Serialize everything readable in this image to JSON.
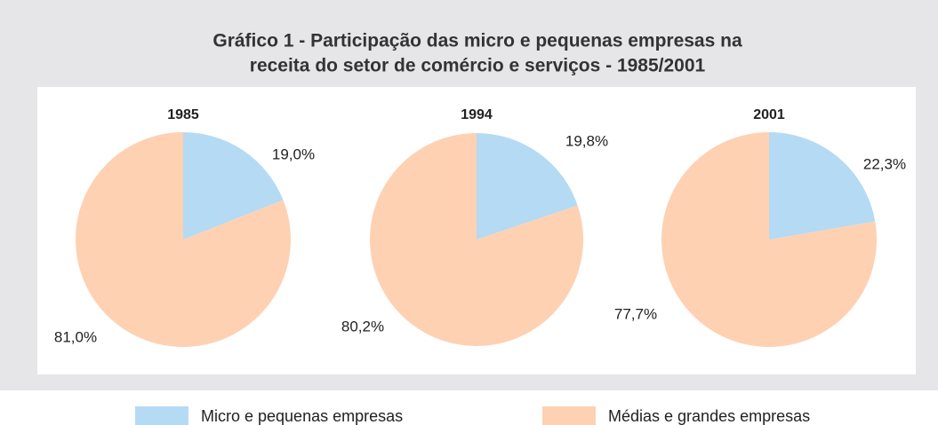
{
  "title": "Gráfico 1 - Participação das micro e pequenas empresas na receita do setor de comércio e serviços - 1985/2001",
  "title_lines": [
    "Gráfico 1 - Participação das micro e pequenas empresas na",
    "receita do setor de comércio e serviços - 1985/2001"
  ],
  "chart_data": [
    {
      "type": "pie",
      "title": "1985",
      "categories": [
        "Micro e pequenas empresas",
        "Médias e grandes empresas"
      ],
      "values": [
        19.0,
        81.0
      ],
      "value_labels": [
        "19,0%",
        "81,0%"
      ],
      "colors": [
        "#b4daf4",
        "#fed1b2"
      ]
    },
    {
      "type": "pie",
      "title": "1994",
      "categories": [
        "Micro e pequenas empresas",
        "Médias e grandes empresas"
      ],
      "values": [
        19.8,
        80.2
      ],
      "value_labels": [
        "19,8%",
        "80,2%"
      ],
      "colors": [
        "#b4daf4",
        "#fed1b2"
      ]
    },
    {
      "type": "pie",
      "title": "2001",
      "categories": [
        "Micro e pequenas empresas",
        "Médias e grandes empresas"
      ],
      "values": [
        22.3,
        77.7
      ],
      "value_labels": [
        "22,3%",
        "77,7%"
      ],
      "colors": [
        "#b4daf4",
        "#fed1b2"
      ]
    }
  ]
}
